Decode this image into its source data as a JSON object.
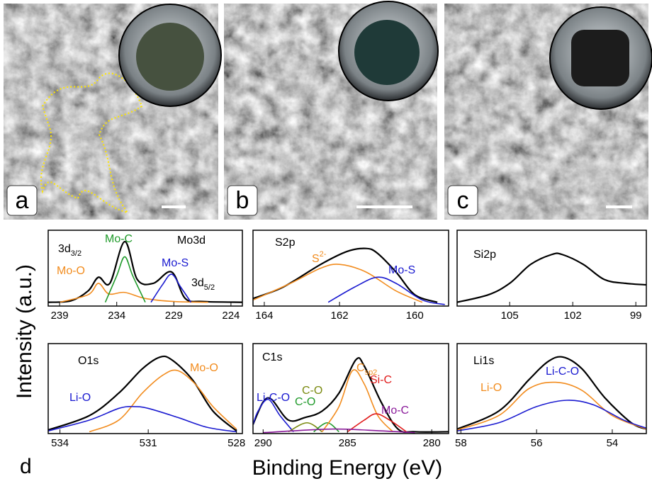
{
  "images": [
    {
      "label": "a"
    },
    {
      "label": "b"
    },
    {
      "label": "c"
    }
  ],
  "panel_label": "d",
  "y_label": "Intensity (a.u.)",
  "x_label": "Binding Energy (eV)",
  "chart_data": [
    {
      "type": "line",
      "title": "Mo3d",
      "xlim": [
        240,
        223
      ],
      "xticks": [
        239,
        234,
        229,
        224
      ],
      "ylim": [
        0,
        1
      ],
      "annotations": [
        {
          "text": "3d",
          "sub": "3/2"
        },
        {
          "text": "3d",
          "sub": "5/2"
        }
      ],
      "series": [
        {
          "color": "#000000",
          "x": [
            240,
            238,
            236.5,
            235.6,
            234.6,
            233.3,
            232.2,
            230.8,
            229.2,
            228,
            226.5,
            223
          ],
          "values": [
            0.05,
            0.07,
            0.2,
            0.38,
            0.3,
            0.85,
            0.35,
            0.3,
            0.45,
            0.1,
            0.06,
            0.05
          ]
        },
        {
          "name": "Mo-O",
          "color": "#f28c1e",
          "x": [
            239,
            236.5,
            235.6,
            234.7,
            233.3,
            231.5,
            229,
            226
          ],
          "values": [
            0.05,
            0.15,
            0.3,
            0.16,
            0.18,
            0.1,
            0.06,
            0.05
          ]
        },
        {
          "name": "Mo-C",
          "color": "#1f9a2a",
          "x": [
            235,
            234,
            233.3,
            232.6,
            231.5
          ],
          "values": [
            0.05,
            0.4,
            0.65,
            0.4,
            0.05
          ]
        },
        {
          "name": "Mo-S",
          "color": "#1a1ad0",
          "x": [
            231,
            230,
            229.2,
            228.4,
            227.5
          ],
          "values": [
            0.05,
            0.28,
            0.42,
            0.25,
            0.05
          ]
        }
      ]
    },
    {
      "type": "line",
      "title": "S2p",
      "xlim": [
        164.3,
        159.1
      ],
      "xticks": [
        164,
        162,
        160
      ],
      "ylim": [
        0,
        1
      ],
      "series": [
        {
          "color": "#000000",
          "x": [
            164.3,
            163.5,
            162.5,
            161.8,
            161.3,
            161,
            160.5,
            160,
            159.4
          ],
          "values": [
            0.1,
            0.25,
            0.55,
            0.72,
            0.76,
            0.7,
            0.45,
            0.15,
            0.05
          ]
        },
        {
          "name": "S",
          "name_sup": "2-",
          "color": "#f28c1e",
          "x": [
            164.3,
            163.3,
            162.5,
            162,
            161.3,
            160.5,
            159.8
          ],
          "values": [
            0.08,
            0.3,
            0.5,
            0.55,
            0.45,
            0.2,
            0.05
          ]
        },
        {
          "name": "Mo-S",
          "color": "#1a1ad0",
          "x": [
            162.3,
            161.6,
            161,
            160.5,
            159.8,
            159.2
          ],
          "values": [
            0.05,
            0.25,
            0.38,
            0.3,
            0.08,
            0.02
          ]
        }
      ]
    },
    {
      "type": "line",
      "title": "Si2p",
      "xlim": [
        107.5,
        98.5
      ],
      "xticks": [
        105,
        102,
        99
      ],
      "ylim": [
        0,
        1
      ],
      "series": [
        {
          "color": "#000000",
          "x": [
            107.5,
            106,
            105,
            104,
            103,
            102.5,
            101.5,
            100.5,
            99.5,
            98.5
          ],
          "values": [
            0.05,
            0.15,
            0.3,
            0.55,
            0.68,
            0.68,
            0.55,
            0.35,
            0.3,
            0.28
          ]
        }
      ]
    },
    {
      "type": "line",
      "title": "O1s",
      "xlim": [
        534.4,
        527.8
      ],
      "xticks": [
        534,
        531,
        528
      ],
      "ylim": [
        0,
        1
      ],
      "series": [
        {
          "color": "#000000",
          "x": [
            534.4,
            533,
            532,
            531.2,
            530.6,
            530.2,
            529.5,
            528.8,
            528
          ],
          "values": [
            0.04,
            0.2,
            0.45,
            0.72,
            0.85,
            0.82,
            0.6,
            0.25,
            0.03
          ]
        },
        {
          "name": "Mo-O",
          "color": "#f28c1e",
          "x": [
            533,
            532,
            531.2,
            530.5,
            530,
            529.4,
            528.8,
            528
          ],
          "values": [
            0.02,
            0.15,
            0.45,
            0.65,
            0.7,
            0.55,
            0.3,
            0.05
          ]
        },
        {
          "name": "Li-O",
          "color": "#1a1ad0",
          "x": [
            534.4,
            533,
            532,
            531.5,
            531,
            530,
            529,
            528
          ],
          "values": [
            0.03,
            0.15,
            0.28,
            0.3,
            0.28,
            0.18,
            0.07,
            0.02
          ]
        }
      ]
    },
    {
      "type": "line",
      "title": "C1s",
      "xlim": [
        290.6,
        279
      ],
      "xticks": [
        290,
        285,
        280
      ],
      "ylim": [
        0,
        1
      ],
      "series": [
        {
          "color": "#000000",
          "x": [
            290.6,
            290,
            289.5,
            288.5,
            287.5,
            286.5,
            285.5,
            284.5,
            284,
            283,
            282,
            281,
            279
          ],
          "values": [
            0.1,
            0.35,
            0.38,
            0.15,
            0.18,
            0.25,
            0.45,
            0.82,
            0.75,
            0.35,
            0.05,
            0.02,
            0.02
          ]
        },
        {
          "name": "Li-C-O",
          "color": "#1a1ad0",
          "x": [
            290.6,
            290.3,
            289.7,
            289,
            288.2
          ],
          "values": [
            0.1,
            0.25,
            0.38,
            0.2,
            0.02
          ]
        },
        {
          "name": "C-O",
          "color": "#7a8a10",
          "x": [
            288.5,
            287.4,
            286.5
          ],
          "values": [
            0.02,
            0.12,
            0.02
          ]
        },
        {
          "name": "C-O",
          "color": "#1f9a2a",
          "x": [
            287,
            286.2,
            285.5
          ],
          "values": [
            0.02,
            0.12,
            0.02
          ]
        },
        {
          "name": "C",
          "name_sub": "sp2",
          "color": "#f28c1e",
          "x": [
            286.5,
            285.5,
            284.7,
            284,
            283.2,
            282.3
          ],
          "values": [
            0.02,
            0.3,
            0.7,
            0.55,
            0.2,
            0.02
          ]
        },
        {
          "name": "Si-C",
          "color": "#e01b1b",
          "x": [
            285,
            284,
            283.3,
            282.5,
            281.5
          ],
          "values": [
            0.02,
            0.15,
            0.22,
            0.15,
            0.02
          ]
        },
        {
          "name": "Mo-C",
          "color": "#8a1a9a",
          "x": [
            290,
            286,
            283,
            281
          ],
          "values": [
            0.01,
            0.05,
            0.03,
            0.01
          ]
        }
      ]
    },
    {
      "type": "line",
      "title": "Li1s",
      "xlim": [
        58.1,
        53.1
      ],
      "xticks": [
        58,
        56,
        54
      ],
      "ylim": [
        0,
        1
      ],
      "series": [
        {
          "color": "#000000",
          "x": [
            58.1,
            57,
            56.2,
            55.7,
            55.3,
            54.8,
            54.2,
            53.5,
            53.1
          ],
          "values": [
            0.05,
            0.25,
            0.6,
            0.8,
            0.85,
            0.72,
            0.4,
            0.12,
            0.05
          ]
        },
        {
          "name": "Li-O",
          "color": "#f28c1e",
          "x": [
            58.1,
            57,
            56.2,
            55.5,
            54.8,
            54,
            53.1
          ],
          "values": [
            0.04,
            0.2,
            0.5,
            0.57,
            0.48,
            0.2,
            0.05
          ]
        },
        {
          "name": "Li-C-O",
          "color": "#1a1ad0",
          "x": [
            58.1,
            57,
            56,
            55.2,
            54.5,
            53.7,
            53.1
          ],
          "values": [
            0.03,
            0.12,
            0.3,
            0.37,
            0.32,
            0.15,
            0.06
          ]
        }
      ]
    }
  ]
}
